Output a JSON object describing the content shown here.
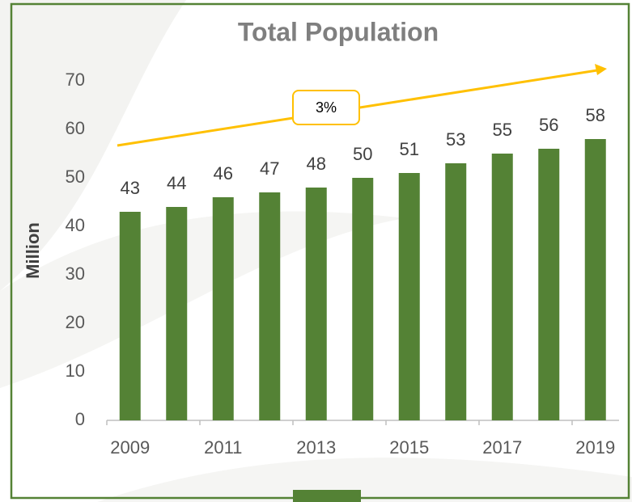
{
  "chart_data": {
    "type": "bar",
    "title": "Total Population",
    "y_label": "Million",
    "categories": [
      "2009",
      null,
      "2011",
      null,
      "2013",
      null,
      "2015",
      null,
      "2017",
      null,
      "2019"
    ],
    "values": [
      43,
      44,
      46,
      47,
      48,
      50,
      51,
      53,
      55,
      56,
      58
    ],
    "color": "#548235",
    "ylim": [
      0,
      70
    ],
    "yticks": [
      0,
      10,
      20,
      30,
      40,
      50,
      60,
      70
    ],
    "annotation": "3%"
  }
}
